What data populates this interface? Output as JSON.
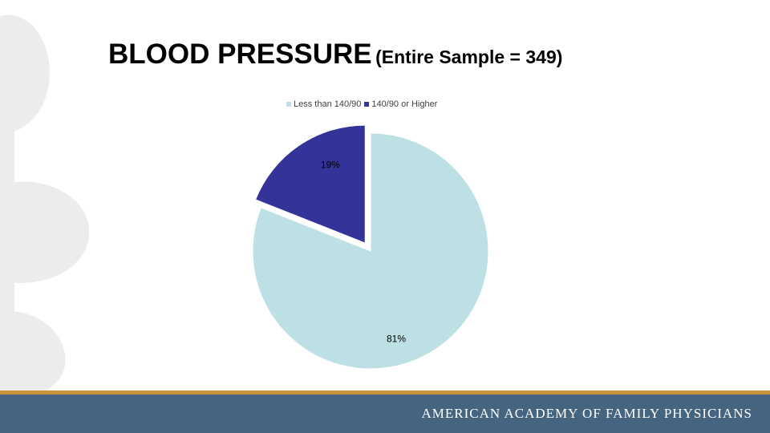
{
  "slide": {
    "title_main": "BLOOD PRESSURE",
    "title_sub": "(Entire Sample = 349)",
    "footer_text": "AMERICAN ACADEMY OF FAMILY PHYSICIANS",
    "footer_color": "#45647f",
    "footer_stripe_color": "#c9943a",
    "watermark_icon": "caduceus-icon"
  },
  "chart_data": {
    "type": "pie",
    "categories": [
      "Less than 140/90",
      "140/90 or Higher"
    ],
    "values": [
      81,
      19
    ],
    "data_labels": [
      "81%",
      "19%"
    ],
    "colors": [
      "#bde0e5",
      "#333399"
    ],
    "exploded": [
      false,
      true
    ],
    "legend_position": "top"
  }
}
